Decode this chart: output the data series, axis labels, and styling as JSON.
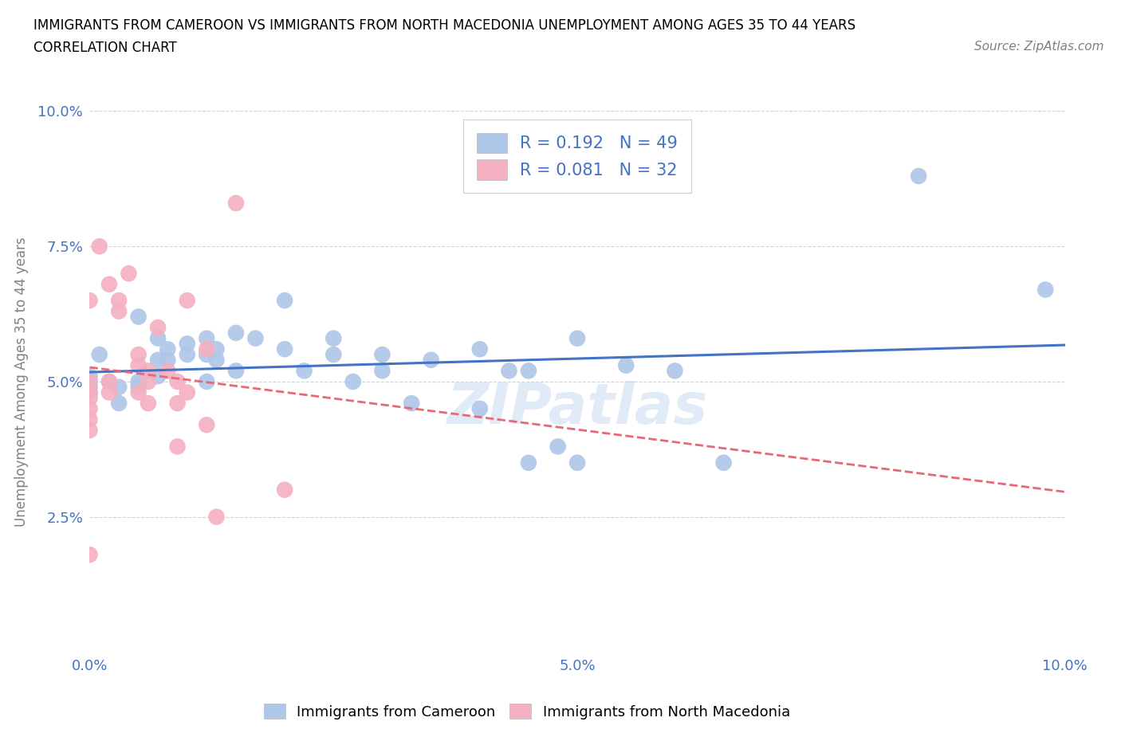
{
  "title_line1": "IMMIGRANTS FROM CAMEROON VS IMMIGRANTS FROM NORTH MACEDONIA UNEMPLOYMENT AMONG AGES 35 TO 44 YEARS",
  "title_line2": "CORRELATION CHART",
  "source_text": "Source: ZipAtlas.com",
  "ylabel": "Unemployment Among Ages 35 to 44 years",
  "xlim": [
    0.0,
    0.1
  ],
  "ylim": [
    0.0,
    0.1
  ],
  "blue_color": "#aec6e8",
  "pink_color": "#f4b0c0",
  "blue_line_color": "#4472c4",
  "pink_line_color": "#e8687a",
  "watermark_color": "#c5d8f0",
  "blue_scatter": [
    [
      0.0,
      0.05
    ],
    [
      0.0,
      0.049
    ],
    [
      0.0,
      0.051
    ],
    [
      0.0,
      0.048
    ],
    [
      0.001,
      0.055
    ],
    [
      0.002,
      0.05
    ],
    [
      0.003,
      0.049
    ],
    [
      0.003,
      0.046
    ],
    [
      0.005,
      0.062
    ],
    [
      0.005,
      0.05
    ],
    [
      0.005,
      0.049
    ],
    [
      0.007,
      0.058
    ],
    [
      0.007,
      0.051
    ],
    [
      0.007,
      0.054
    ],
    [
      0.008,
      0.056
    ],
    [
      0.008,
      0.054
    ],
    [
      0.01,
      0.057
    ],
    [
      0.01,
      0.055
    ],
    [
      0.012,
      0.058
    ],
    [
      0.012,
      0.055
    ],
    [
      0.012,
      0.05
    ],
    [
      0.013,
      0.056
    ],
    [
      0.013,
      0.054
    ],
    [
      0.015,
      0.059
    ],
    [
      0.015,
      0.052
    ],
    [
      0.017,
      0.058
    ],
    [
      0.02,
      0.065
    ],
    [
      0.02,
      0.056
    ],
    [
      0.022,
      0.052
    ],
    [
      0.025,
      0.058
    ],
    [
      0.025,
      0.055
    ],
    [
      0.027,
      0.05
    ],
    [
      0.03,
      0.055
    ],
    [
      0.03,
      0.052
    ],
    [
      0.033,
      0.046
    ],
    [
      0.035,
      0.054
    ],
    [
      0.04,
      0.056
    ],
    [
      0.04,
      0.045
    ],
    [
      0.043,
      0.052
    ],
    [
      0.045,
      0.052
    ],
    [
      0.045,
      0.035
    ],
    [
      0.048,
      0.038
    ],
    [
      0.05,
      0.058
    ],
    [
      0.05,
      0.035
    ],
    [
      0.055,
      0.053
    ],
    [
      0.06,
      0.052
    ],
    [
      0.065,
      0.035
    ],
    [
      0.085,
      0.088
    ],
    [
      0.098,
      0.067
    ]
  ],
  "pink_scatter": [
    [
      0.0,
      0.065
    ],
    [
      0.0,
      0.05
    ],
    [
      0.0,
      0.048
    ],
    [
      0.0,
      0.047
    ],
    [
      0.0,
      0.045
    ],
    [
      0.0,
      0.043
    ],
    [
      0.0,
      0.041
    ],
    [
      0.0,
      0.018
    ],
    [
      0.001,
      0.075
    ],
    [
      0.002,
      0.068
    ],
    [
      0.002,
      0.05
    ],
    [
      0.002,
      0.048
    ],
    [
      0.003,
      0.065
    ],
    [
      0.003,
      0.063
    ],
    [
      0.004,
      0.07
    ],
    [
      0.005,
      0.055
    ],
    [
      0.005,
      0.053
    ],
    [
      0.005,
      0.048
    ],
    [
      0.006,
      0.052
    ],
    [
      0.006,
      0.05
    ],
    [
      0.006,
      0.046
    ],
    [
      0.007,
      0.06
    ],
    [
      0.008,
      0.052
    ],
    [
      0.009,
      0.05
    ],
    [
      0.009,
      0.046
    ],
    [
      0.009,
      0.038
    ],
    [
      0.01,
      0.065
    ],
    [
      0.01,
      0.048
    ],
    [
      0.012,
      0.056
    ],
    [
      0.012,
      0.042
    ],
    [
      0.013,
      0.025
    ],
    [
      0.015,
      0.083
    ],
    [
      0.02,
      0.03
    ]
  ]
}
